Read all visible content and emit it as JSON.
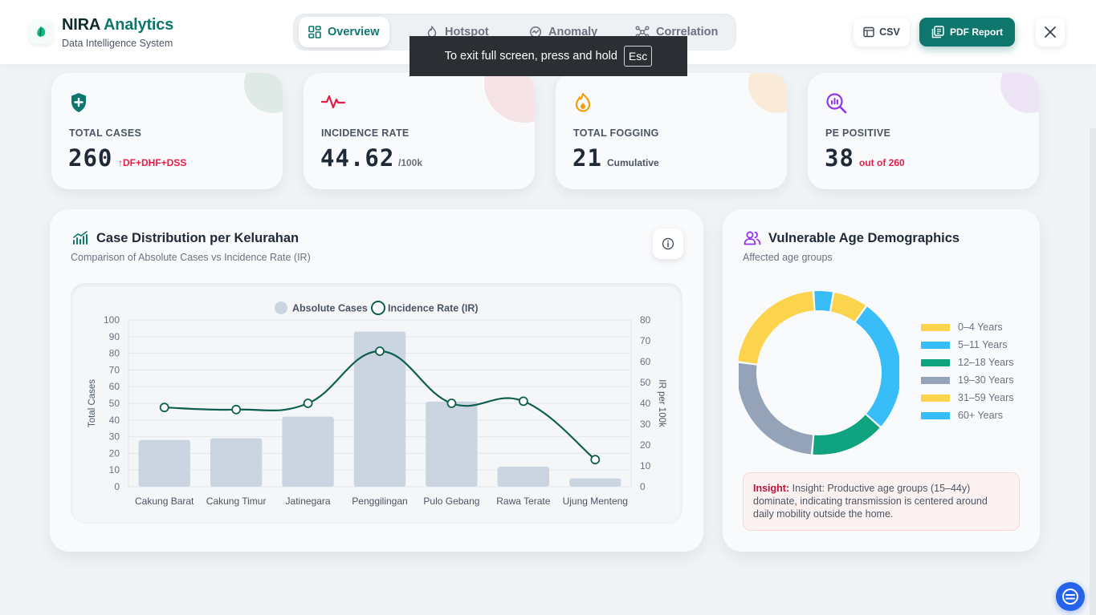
{
  "brand": {
    "name_part1": "NIRA",
    "name_part2": "Analytics",
    "subtitle": "Data Intelligence System",
    "logo_icon": "leaf-icon"
  },
  "tabs": [
    {
      "label": "Overview",
      "icon": "grid-icon",
      "active": true
    },
    {
      "label": "Hotspot",
      "icon": "flame-icon",
      "active": false
    },
    {
      "label": "Anomaly",
      "icon": "radar-icon",
      "active": false
    },
    {
      "label": "Correlation",
      "icon": "network-icon",
      "active": false
    }
  ],
  "actions": {
    "csv_label": "CSV",
    "pdf_label": "PDF Report",
    "close_icon": "close-icon"
  },
  "fullscreen_toast": {
    "text": "To exit full screen, press and hold",
    "key": "Esc"
  },
  "stats": [
    {
      "label": "TOTAL CASES",
      "value": "260",
      "note": "↑DF+DHF+DSS",
      "note_color": "#e11d48",
      "icon": "shield-plus-icon",
      "color": "#0f766e"
    },
    {
      "label": "INCIDENCE RATE",
      "value": "44.62",
      "note": "/100k",
      "note_color": "#6b7280",
      "icon": "pulse-icon",
      "color": "#e11d48"
    },
    {
      "label": "TOTAL FOGGING",
      "value": "21",
      "note": "Cumulative",
      "note_color": "#4b5563",
      "icon": "fire-icon",
      "color": "#f59e0b"
    },
    {
      "label": "PE POSITIVE",
      "value": "38",
      "note": "out of 260",
      "note_color": "#e11d48",
      "icon": "search-chart-icon",
      "color": "#9333ea"
    }
  ],
  "case_panel": {
    "title": "Case Distribution per Kelurahan",
    "subtitle": "Comparison of Absolute Cases vs Incidence Rate (IR)"
  },
  "chart_data": {
    "type": "bar",
    "categories": [
      "Cakung Barat",
      "Cakung Timur",
      "Jatinegara",
      "Penggilingan",
      "Pulo Gebang",
      "Rawa Terate",
      "Ujung Menteng"
    ],
    "series": [
      {
        "name": "Absolute Cases",
        "type": "bar",
        "axis": "left",
        "color": "#cbd5e1",
        "values": [
          28,
          29,
          42,
          93,
          51,
          12,
          5
        ]
      },
      {
        "name": "Incidence Rate (IR)",
        "type": "line",
        "axis": "right",
        "color": "#0f5f4f",
        "values": [
          38,
          37,
          40,
          65,
          40,
          41,
          13
        ]
      }
    ],
    "ylabel": "Total Cases",
    "y2label": "IR per 100k",
    "ylim": [
      0,
      100
    ],
    "y2lim": [
      0,
      80
    ],
    "yticks": [
      0,
      10,
      20,
      30,
      40,
      50,
      60,
      70,
      80,
      90,
      100
    ],
    "y2ticks": [
      0,
      10,
      20,
      30,
      40,
      50,
      60,
      70,
      80
    ],
    "legend_position": "top",
    "grid": true
  },
  "age_panel": {
    "title": "Vulnerable Age Demographics",
    "subtitle": "Affected age groups",
    "insight_label": "Insight:",
    "insight_text": "Insight: Productive age groups (15–44y) dominate, indicating transmission is centered around daily mobility outside the home."
  },
  "donut": {
    "type": "pie",
    "labels": [
      "0–4 Years",
      "5–11 Years",
      "12–18 Years",
      "19–30 Years",
      "31–59 Years",
      "60+ Years"
    ],
    "values": [
      7,
      27,
      15,
      26,
      22,
      4
    ],
    "colors": [
      "#fcd34d",
      "#38bdf8",
      "#0fa37f",
      "#94a3b8",
      "#fcd34d",
      "#38bdf8"
    ]
  },
  "assistant_icon": "chat-bot-icon"
}
